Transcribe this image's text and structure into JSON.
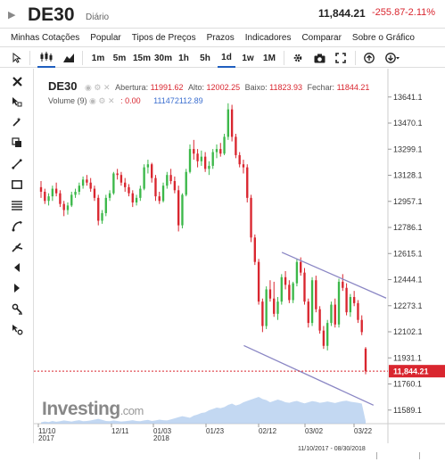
{
  "header": {
    "symbol": "DE30",
    "period": "Diário",
    "price": "11,844.21",
    "change": "-255.87",
    "change_pct": "-2.11%"
  },
  "menu": [
    "Minhas Cotações",
    "Popular",
    "Tipos de Preços",
    "Prazos",
    "Indicadores",
    "Comparar",
    "Sobre o Gráfico"
  ],
  "toolbar": {
    "timeframes": [
      "1m",
      "5m",
      "15m",
      "30m",
      "1h",
      "5h",
      "1d",
      "1w",
      "1M"
    ],
    "active_timeframe": "1d"
  },
  "legend": {
    "symbol": "DE30",
    "open_label": "Abertura:",
    "open": "11991.62",
    "high_label": "Alto:",
    "high": "12002.25",
    "low_label": "Baixo:",
    "low": "11823.93",
    "close_label": "Fechar:",
    "close": "11844.21",
    "volume_label": "Volume (9)",
    "volume_value": ": 0.00",
    "volume_ma": "111472112.89"
  },
  "logo": {
    "brand": "Investing",
    "suffix": ".com"
  },
  "footer": {
    "range": "11/10/2017 - 08/30/2018"
  },
  "chart_data": {
    "type": "candlestick",
    "x_ticks": [
      "11/10\n2017",
      "12/11",
      "01/03\n2018",
      "01/23",
      "02/12",
      "03/02",
      "03/22"
    ],
    "y_ticks": [
      13641.1,
      13470.1,
      13299.1,
      13128.1,
      12957.1,
      12786.1,
      12615.1,
      12444.1,
      12273.1,
      12102.1,
      11931.1,
      11760.1,
      11589.1
    ],
    "ylim": [
      11500,
      13780
    ],
    "last_price": "11,844.21",
    "colors": {
      "up": "#3cb84a",
      "down": "#d9262f",
      "channel": "#8a86c4",
      "volume": "#a9c8ec"
    },
    "candles": [
      [
        13050,
        13090,
        12980,
        13020
      ],
      [
        13020,
        13040,
        12940,
        12960
      ],
      [
        12960,
        13010,
        12930,
        12990
      ],
      [
        12990,
        13060,
        12960,
        13040
      ],
      [
        13040,
        13080,
        12990,
        13010
      ],
      [
        13010,
        13030,
        12920,
        12940
      ],
      [
        12940,
        12960,
        12860,
        12900
      ],
      [
        12900,
        12950,
        12870,
        12930
      ],
      [
        12930,
        13020,
        12920,
        13000
      ],
      [
        13000,
        13040,
        12980,
        13020
      ],
      [
        13020,
        13080,
        13000,
        13060
      ],
      [
        13060,
        13120,
        13040,
        13100
      ],
      [
        13100,
        13130,
        13060,
        13080
      ],
      [
        13080,
        13110,
        13020,
        13040
      ],
      [
        13040,
        13060,
        12960,
        12980
      ],
      [
        12980,
        13000,
        12800,
        12830
      ],
      [
        12830,
        12900,
        12810,
        12880
      ],
      [
        12880,
        13000,
        12860,
        12980
      ],
      [
        12980,
        13030,
        12960,
        13010
      ],
      [
        13010,
        13150,
        13000,
        13140
      ],
      [
        13140,
        13170,
        13100,
        13130
      ],
      [
        13130,
        13150,
        13060,
        13080
      ],
      [
        13080,
        13110,
        13020,
        13050
      ],
      [
        13050,
        13070,
        12990,
        13010
      ],
      [
        13010,
        13030,
        12920,
        12950
      ],
      [
        12950,
        13000,
        12930,
        12980
      ],
      [
        12980,
        13060,
        12960,
        13040
      ],
      [
        13040,
        13200,
        13030,
        13180
      ],
      [
        13180,
        13230,
        13140,
        13200
      ],
      [
        13200,
        13210,
        13080,
        13110
      ],
      [
        13110,
        13130,
        12960,
        12990
      ],
      [
        12990,
        13020,
        12940,
        12960
      ],
      [
        12960,
        13080,
        12950,
        13060
      ],
      [
        13060,
        13150,
        13040,
        13130
      ],
      [
        13130,
        13170,
        13070,
        13090
      ],
      [
        13090,
        13120,
        13010,
        13030
      ],
      [
        13030,
        13060,
        12760,
        12800
      ],
      [
        12800,
        13010,
        12780,
        13000
      ],
      [
        13000,
        13170,
        12990,
        13150
      ],
      [
        13150,
        13330,
        13140,
        13300
      ],
      [
        13300,
        13360,
        13230,
        13270
      ],
      [
        13270,
        13300,
        13180,
        13220
      ],
      [
        13220,
        13290,
        13190,
        13250
      ],
      [
        13250,
        13280,
        13150,
        13170
      ],
      [
        13170,
        13220,
        13130,
        13190
      ],
      [
        13190,
        13300,
        13170,
        13280
      ],
      [
        13280,
        13330,
        13240,
        13300
      ],
      [
        13300,
        13340,
        13250,
        13270
      ],
      [
        13270,
        13400,
        13260,
        13380
      ],
      [
        13380,
        13600,
        13360,
        13560
      ],
      [
        13560,
        13590,
        13350,
        13380
      ],
      [
        13380,
        13400,
        13240,
        13260
      ],
      [
        13260,
        13280,
        13180,
        13200
      ],
      [
        13200,
        13230,
        13140,
        13180
      ],
      [
        13180,
        13200,
        12950,
        12980
      ],
      [
        12980,
        13000,
        12690,
        12720
      ],
      [
        12720,
        12740,
        12540,
        12560
      ],
      [
        12560,
        12580,
        12280,
        12300
      ],
      [
        12300,
        12320,
        12100,
        12140
      ],
      [
        12140,
        12400,
        12120,
        12380
      ],
      [
        12380,
        12440,
        12300,
        12320
      ],
      [
        12320,
        12430,
        12200,
        12220
      ],
      [
        12220,
        12330,
        12180,
        12300
      ],
      [
        12300,
        12480,
        12280,
        12460
      ],
      [
        12460,
        12500,
        12380,
        12410
      ],
      [
        12410,
        12440,
        12290,
        12310
      ],
      [
        12310,
        12430,
        12290,
        12420
      ],
      [
        12420,
        12580,
        12400,
        12560
      ],
      [
        12560,
        12590,
        12470,
        12490
      ],
      [
        12490,
        12520,
        12280,
        12300
      ],
      [
        12300,
        12320,
        12130,
        12160
      ],
      [
        12160,
        12460,
        12140,
        12440
      ],
      [
        12440,
        12470,
        12230,
        12250
      ],
      [
        12250,
        12270,
        12090,
        12110
      ],
      [
        12110,
        12140,
        11990,
        12010
      ],
      [
        12010,
        12180,
        11980,
        12160
      ],
      [
        12160,
        12300,
        12140,
        12280
      ],
      [
        12280,
        12320,
        12130,
        12150
      ],
      [
        12150,
        12450,
        12130,
        12430
      ],
      [
        12430,
        12480,
        12370,
        12390
      ],
      [
        12390,
        12420,
        12210,
        12230
      ],
      [
        12230,
        12350,
        12200,
        12330
      ],
      [
        12330,
        12370,
        12270,
        12290
      ],
      [
        12290,
        12310,
        12160,
        12180
      ],
      [
        12180,
        12210,
        12080,
        12100
      ],
      [
        11992,
        12002,
        11824,
        11844
      ]
    ],
    "channel_upper": [
      [
        12623,
        0.704
      ],
      [
        12323,
        1.0
      ]
    ],
    "channel_lower": [
      [
        12012,
        0.596
      ],
      [
        11621,
        0.964
      ]
    ],
    "volume_area": [
      0.05,
      0.08,
      0.06,
      0.1,
      0.07,
      0.09,
      0.12,
      0.1,
      0.08,
      0.11,
      0.13,
      0.09,
      0.1,
      0.12,
      0.15,
      0.18,
      0.14,
      0.1,
      0.09,
      0.12,
      0.1,
      0.08,
      0.09,
      0.11,
      0.13,
      0.1,
      0.09,
      0.12,
      0.14,
      0.1,
      0.12,
      0.15,
      0.13,
      0.12,
      0.16,
      0.2,
      0.24,
      0.28,
      0.25,
      0.22,
      0.3,
      0.34,
      0.4,
      0.42,
      0.5,
      0.55,
      0.6,
      0.58,
      0.62,
      0.7,
      0.75,
      0.68,
      0.72,
      0.8,
      0.85,
      0.9,
      0.95,
      1.0,
      0.92,
      0.88,
      0.8,
      0.85,
      0.9,
      0.86,
      0.8,
      0.78,
      0.82,
      0.85,
      0.8,
      0.76,
      0.8,
      0.84,
      0.82,
      0.78,
      0.8,
      0.83,
      0.8,
      0.77,
      0.81,
      0.84,
      0.86,
      0.82,
      0.8,
      0.78,
      0.75,
      0.1
    ]
  }
}
